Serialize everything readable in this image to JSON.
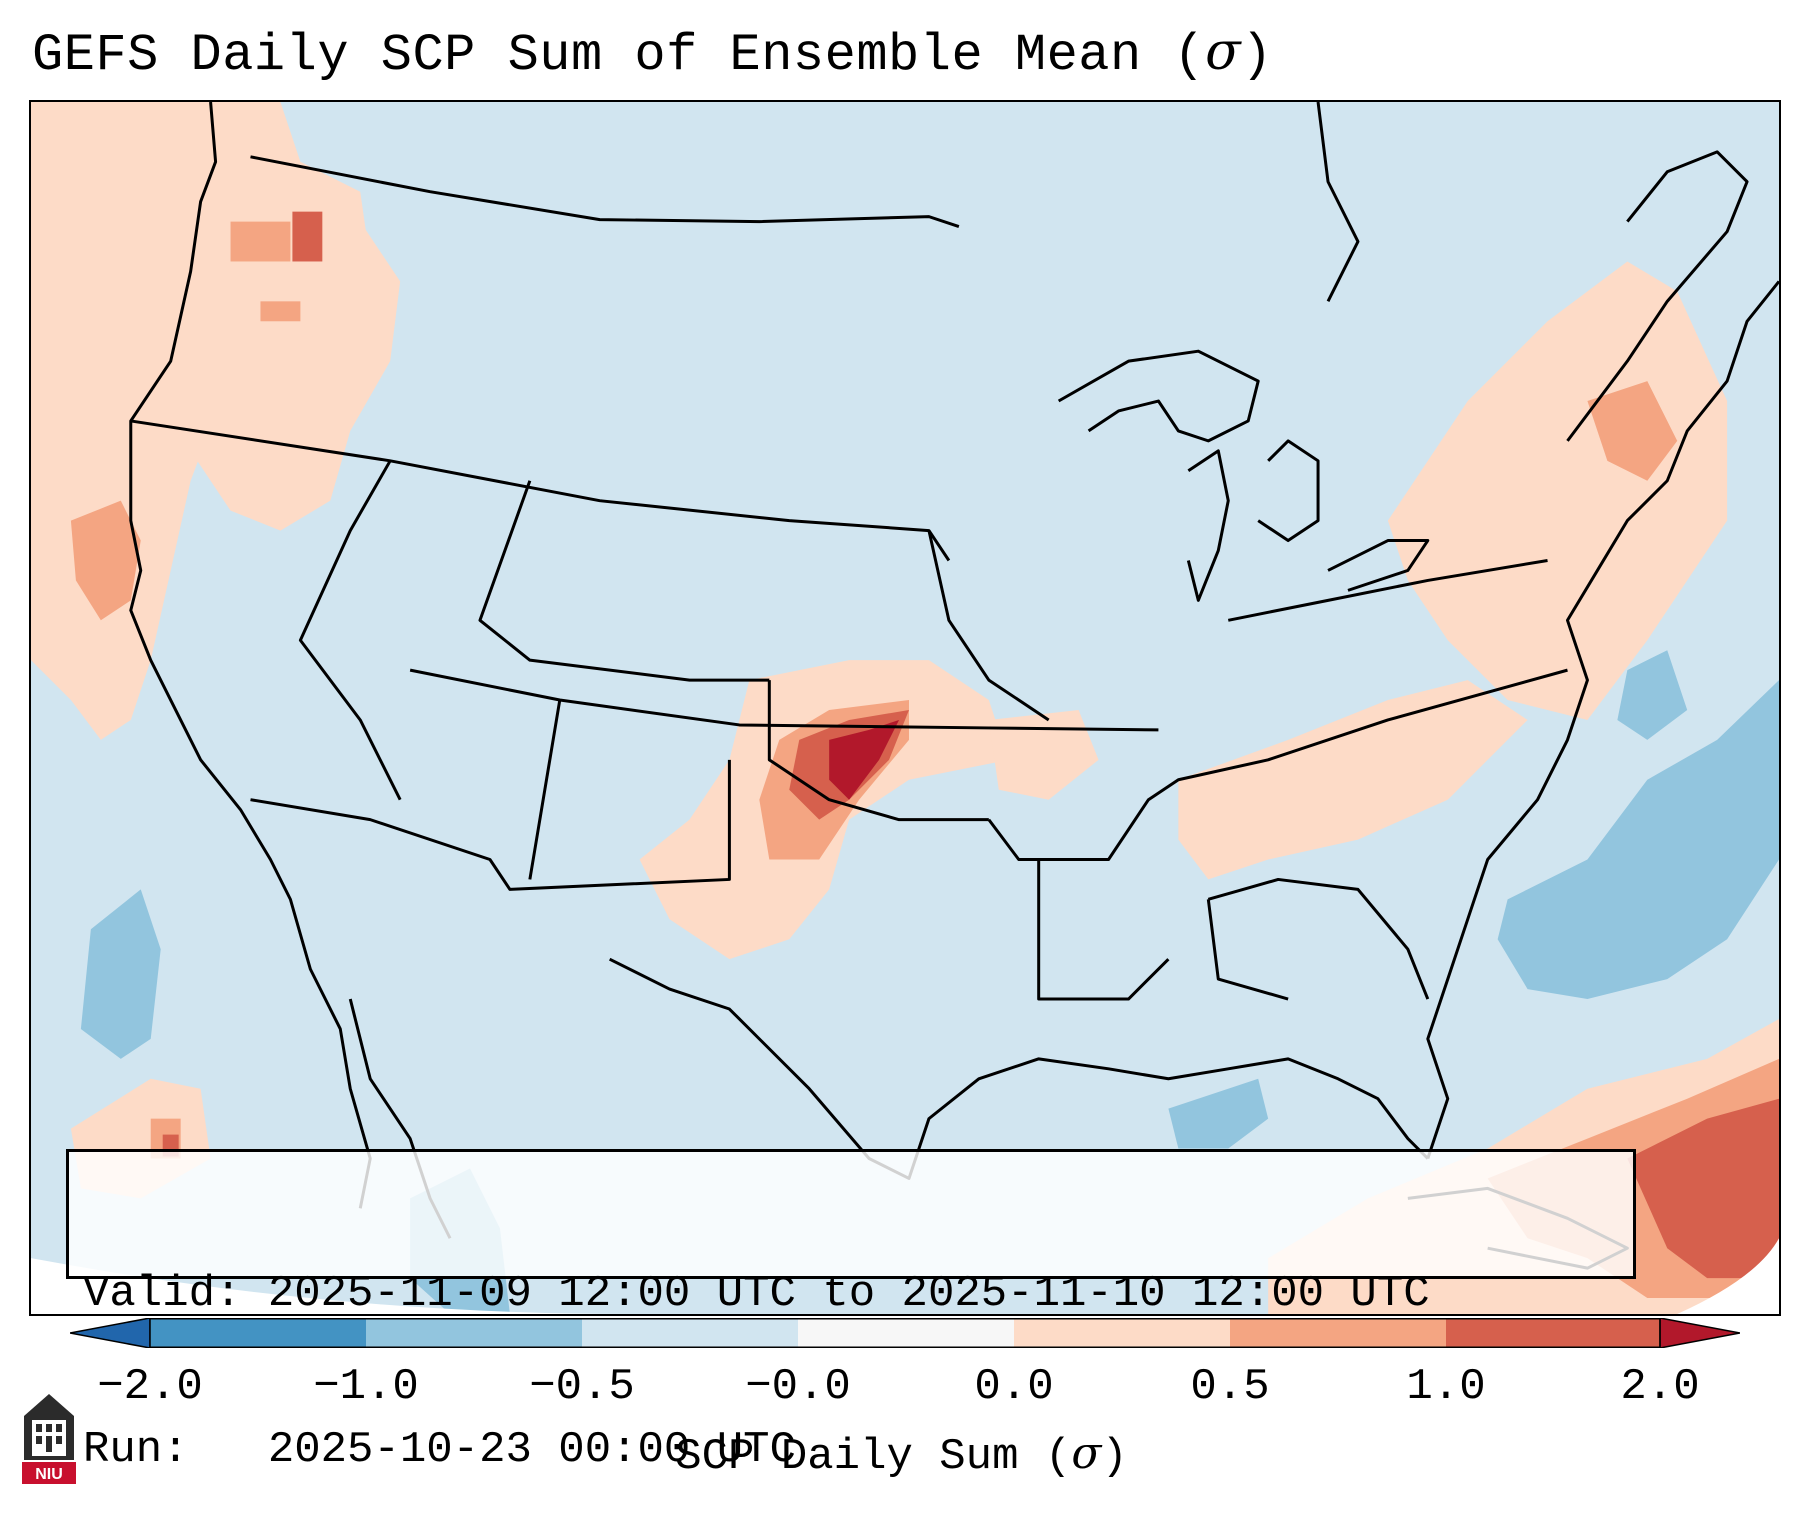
{
  "title": {
    "text": "GEFS Daily SCP Sum of Ensemble Mean (",
    "symbol": "σ",
    "close": ")"
  },
  "info": {
    "valid_label": "Valid:",
    "valid_value": "2025-11-09 12:00 UTC to 2025-11-10 12:00 UTC",
    "run_label": "Run:",
    "run_value": "2025-10-23 00:00 UTC"
  },
  "colorbar": {
    "label_text": "SCP Daily Sum (",
    "label_symbol": "σ",
    "label_close": ")",
    "ticks": [
      "−2.0",
      "−1.0",
      "−0.5",
      "−0.0",
      "0.0",
      "0.5",
      "1.0",
      "2.0"
    ],
    "colors": [
      "#4393c3",
      "#92c5de",
      "#d1e5f0",
      "#f7f7f7",
      "#fddbc7",
      "#f4a582",
      "#d6604d"
    ],
    "extend_low_color": "#2166ac",
    "extend_high_color": "#b2182b"
  },
  "map_colors": {
    "background": "#d1e5f0",
    "light_red": "#fddbc7",
    "mid_red": "#f4a582",
    "strong_red": "#d6604d",
    "dark_red": "#b2182b",
    "light_blue": "#92c5de",
    "white": "#f7f7f7",
    "lines": "#000000"
  },
  "logo": {
    "text": "NIU",
    "color": "#c8102e"
  }
}
